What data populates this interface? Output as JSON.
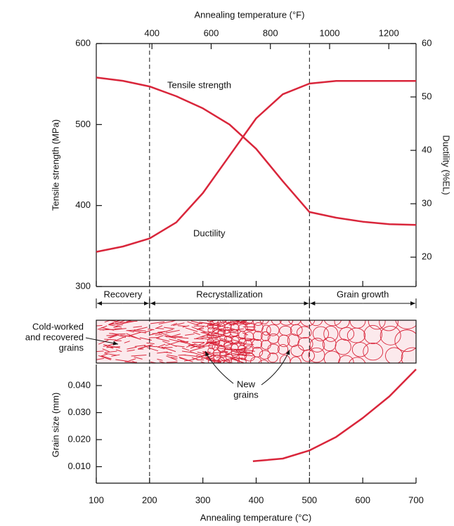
{
  "chart_data": [
    {
      "type": "line",
      "x2label": "Annealing temperature (°F)",
      "x2lim": [
        212,
        1292
      ],
      "x2ticks": [
        400,
        600,
        800,
        1000,
        1200
      ],
      "xlim": [
        100,
        700
      ],
      "x": [
        100,
        150,
        200,
        250,
        300,
        350,
        400,
        450,
        500,
        550,
        600,
        650,
        700
      ],
      "ylabel": "Tensile strength (MPa)",
      "ylim": [
        300,
        600
      ],
      "yticks": [
        300,
        400,
        500,
        600
      ],
      "y2label": "Ductility (%EL)",
      "y2lim": [
        14.5,
        60
      ],
      "y2ticks": [
        20,
        30,
        40,
        50,
        60
      ],
      "series": [
        {
          "name": "Tensile strength",
          "color": "#d9263b",
          "values": [
            558,
            554,
            547,
            535,
            520,
            500,
            470,
            430,
            392,
            385,
            380,
            377,
            376
          ]
        },
        {
          "name": "Ductility",
          "color": "#d9263b",
          "axis": "y2",
          "values": [
            21,
            22,
            23.5,
            26.5,
            32,
            39,
            46,
            50.5,
            52.5,
            53,
            53,
            53,
            53
          ]
        }
      ],
      "dividers": [
        200,
        500
      ],
      "regions": [
        {
          "label": "Recovery",
          "from": 100,
          "to": 200
        },
        {
          "label": "Recrystallization",
          "from": 200,
          "to": 500
        },
        {
          "label": "Grain growth",
          "from": 500,
          "to": 700
        }
      ],
      "annotations": [
        {
          "lines": [
            "Cold-worked",
            "and recovered",
            "grains"
          ]
        },
        {
          "lines": [
            "New",
            "grains"
          ]
        }
      ]
    },
    {
      "type": "line",
      "xlabel": "Annealing temperature (°C)",
      "xlim": [
        100,
        700
      ],
      "xticks": [
        100,
        200,
        300,
        400,
        500,
        600,
        700
      ],
      "ylabel": "Grain size (mm)",
      "ylim": [
        0.0039,
        0.0478
      ],
      "yticks": [
        {
          "value": 0.01,
          "label": "0.010"
        },
        {
          "value": 0.02,
          "label": "0.020"
        },
        {
          "value": 0.03,
          "label": "0.030"
        },
        {
          "value": 0.04,
          "label": "0.040"
        }
      ],
      "x": [
        394,
        450,
        500,
        550,
        600,
        650,
        700
      ],
      "series": [
        {
          "name": null,
          "color": "#d9263b",
          "values": [
            0.012,
            0.013,
            0.016,
            0.021,
            0.028,
            0.036,
            0.046
          ]
        }
      ]
    }
  ]
}
